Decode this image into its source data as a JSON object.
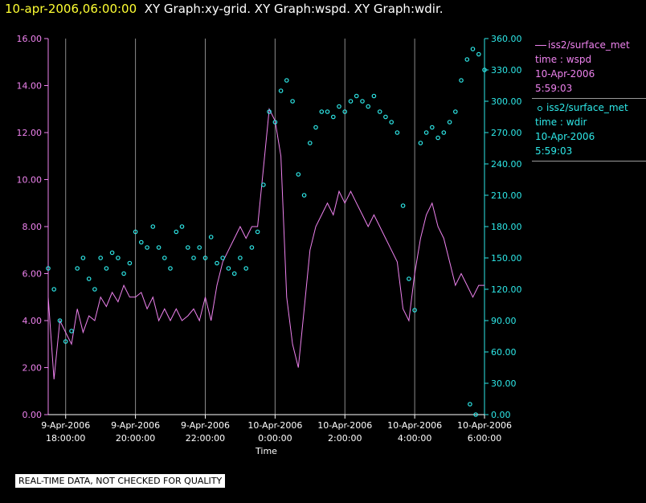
{
  "header": {
    "timestamp": "10-apr-2006,06:00:00",
    "graphs": "XY Graph:xy-grid.  XY Graph:wspd.  XY Graph:wdir."
  },
  "legend": [
    {
      "symbol": "line",
      "name": "iss2/surface_met",
      "field": "time : wspd",
      "date": "10-Apr-2006",
      "time": "5:59:03",
      "color": "#ee82ee"
    },
    {
      "symbol": "circle",
      "name": "iss2/surface_met",
      "field": "time : wdir",
      "date": "10-Apr-2006",
      "time": "5:59:03",
      "color": "#2ee8e8"
    }
  ],
  "note": "REAL-TIME DATA, NOT CHECKED FOR QUALITY",
  "chart_data": {
    "type": "line",
    "xlabel": "Time",
    "x_range": [
      "2006-04-09T17:30:00",
      "2006-04-10T06:00:00"
    ],
    "x_ticks": [
      {
        "date": "9-Apr-2006",
        "time": "18:00:00"
      },
      {
        "date": "9-Apr-2006",
        "time": "20:00:00"
      },
      {
        "date": "9-Apr-2006",
        "time": "22:00:00"
      },
      {
        "date": "10-Apr-2006",
        "time": "0:00:00"
      },
      {
        "date": "10-Apr-2006",
        "time": "2:00:00"
      },
      {
        "date": "10-Apr-2006",
        "time": "4:00:00"
      },
      {
        "date": "10-Apr-2006",
        "time": "6:00:00"
      }
    ],
    "left_axis": {
      "min": 0,
      "max": 16,
      "ticks": [
        "0.00",
        "2.00",
        "4.00",
        "6.00",
        "8.00",
        "10.00",
        "12.00",
        "14.00",
        "16.00"
      ],
      "color": "#ee82ee"
    },
    "right_axis": {
      "min": 0,
      "max": 360,
      "ticks": [
        "0.00",
        "30.00",
        "60.00",
        "90.00",
        "120.00",
        "150.00",
        "180.00",
        "210.00",
        "240.00",
        "270.00",
        "300.00",
        "330.00",
        "360.00"
      ],
      "color": "#2ee8e8"
    },
    "grid": "vertical",
    "series": [
      {
        "name": "wspd",
        "axis": "left",
        "style": "line",
        "color": "#ee82ee",
        "points": [
          [
            "17:30",
            5.0
          ],
          [
            "17:40",
            1.5
          ],
          [
            "17:50",
            4.0
          ],
          [
            "18:00",
            3.5
          ],
          [
            "18:10",
            3.0
          ],
          [
            "18:20",
            4.5
          ],
          [
            "18:30",
            3.5
          ],
          [
            "18:40",
            4.2
          ],
          [
            "18:50",
            4.0
          ],
          [
            "19:00",
            5.0
          ],
          [
            "19:10",
            4.6
          ],
          [
            "19:20",
            5.2
          ],
          [
            "19:30",
            4.8
          ],
          [
            "19:40",
            5.5
          ],
          [
            "19:50",
            5.0
          ],
          [
            "20:00",
            5.0
          ],
          [
            "20:10",
            5.2
          ],
          [
            "20:20",
            4.5
          ],
          [
            "20:30",
            5.0
          ],
          [
            "20:40",
            4.0
          ],
          [
            "20:50",
            4.5
          ],
          [
            "21:00",
            4.0
          ],
          [
            "21:10",
            4.5
          ],
          [
            "21:20",
            4.0
          ],
          [
            "21:30",
            4.2
          ],
          [
            "21:40",
            4.5
          ],
          [
            "21:50",
            4.0
          ],
          [
            "22:00",
            5.0
          ],
          [
            "22:10",
            4.0
          ],
          [
            "22:20",
            5.5
          ],
          [
            "22:30",
            6.5
          ],
          [
            "22:40",
            7.0
          ],
          [
            "22:50",
            7.5
          ],
          [
            "23:00",
            8.0
          ],
          [
            "23:10",
            7.5
          ],
          [
            "23:20",
            8.0
          ],
          [
            "23:30",
            8.0
          ],
          [
            "23:40",
            10.5
          ],
          [
            "23:50",
            13.0
          ],
          [
            "0:00",
            12.5
          ],
          [
            "0:10",
            11.0
          ],
          [
            "0:20",
            5.0
          ],
          [
            "0:30",
            3.0
          ],
          [
            "0:40",
            2.0
          ],
          [
            "0:50",
            4.5
          ],
          [
            "1:00",
            7.0
          ],
          [
            "1:10",
            8.0
          ],
          [
            "1:20",
            8.5
          ],
          [
            "1:30",
            9.0
          ],
          [
            "1:40",
            8.5
          ],
          [
            "1:50",
            9.5
          ],
          [
            "2:00",
            9.0
          ],
          [
            "2:10",
            9.5
          ],
          [
            "2:20",
            9.0
          ],
          [
            "2:30",
            8.5
          ],
          [
            "2:40",
            8.0
          ],
          [
            "2:50",
            8.5
          ],
          [
            "3:00",
            8.0
          ],
          [
            "3:10",
            7.5
          ],
          [
            "3:20",
            7.0
          ],
          [
            "3:30",
            6.5
          ],
          [
            "3:40",
            4.5
          ],
          [
            "3:50",
            4.0
          ],
          [
            "4:00",
            6.0
          ],
          [
            "4:10",
            7.5
          ],
          [
            "4:20",
            8.5
          ],
          [
            "4:30",
            9.0
          ],
          [
            "4:40",
            8.0
          ],
          [
            "4:50",
            7.5
          ],
          [
            "5:00",
            6.5
          ],
          [
            "5:10",
            5.5
          ],
          [
            "5:20",
            6.0
          ],
          [
            "5:30",
            5.5
          ],
          [
            "5:40",
            5.0
          ],
          [
            "5:50",
            5.5
          ],
          [
            "6:00",
            5.5
          ]
        ]
      },
      {
        "name": "wdir",
        "axis": "right",
        "style": "scatter",
        "color": "#2ee8e8",
        "points": [
          [
            "17:30",
            140
          ],
          [
            "17:40",
            120
          ],
          [
            "17:50",
            90
          ],
          [
            "18:00",
            70
          ],
          [
            "18:10",
            80
          ],
          [
            "18:20",
            140
          ],
          [
            "18:30",
            150
          ],
          [
            "18:40",
            130
          ],
          [
            "18:50",
            120
          ],
          [
            "19:00",
            150
          ],
          [
            "19:10",
            140
          ],
          [
            "19:20",
            155
          ],
          [
            "19:30",
            150
          ],
          [
            "19:40",
            135
          ],
          [
            "19:50",
            145
          ],
          [
            "20:00",
            175
          ],
          [
            "20:10",
            165
          ],
          [
            "20:20",
            160
          ],
          [
            "20:30",
            180
          ],
          [
            "20:40",
            160
          ],
          [
            "20:50",
            150
          ],
          [
            "21:00",
            140
          ],
          [
            "21:10",
            175
          ],
          [
            "21:20",
            180
          ],
          [
            "21:30",
            160
          ],
          [
            "21:40",
            150
          ],
          [
            "21:50",
            160
          ],
          [
            "22:00",
            150
          ],
          [
            "22:10",
            170
          ],
          [
            "22:20",
            145
          ],
          [
            "22:30",
            150
          ],
          [
            "22:40",
            140
          ],
          [
            "22:50",
            135
          ],
          [
            "23:00",
            150
          ],
          [
            "23:10",
            140
          ],
          [
            "23:20",
            160
          ],
          [
            "23:30",
            175
          ],
          [
            "23:40",
            220
          ],
          [
            "23:50",
            290
          ],
          [
            "0:00",
            280
          ],
          [
            "0:10",
            310
          ],
          [
            "0:20",
            320
          ],
          [
            "0:30",
            300
          ],
          [
            "0:40",
            230
          ],
          [
            "0:50",
            210
          ],
          [
            "1:00",
            260
          ],
          [
            "1:10",
            275
          ],
          [
            "1:20",
            290
          ],
          [
            "1:30",
            290
          ],
          [
            "1:40",
            285
          ],
          [
            "1:50",
            295
          ],
          [
            "2:00",
            290
          ],
          [
            "2:10",
            300
          ],
          [
            "2:20",
            305
          ],
          [
            "2:30",
            300
          ],
          [
            "2:40",
            295
          ],
          [
            "2:50",
            305
          ],
          [
            "3:00",
            290
          ],
          [
            "3:10",
            285
          ],
          [
            "3:20",
            280
          ],
          [
            "3:30",
            270
          ],
          [
            "3:40",
            200
          ],
          [
            "3:50",
            130
          ],
          [
            "4:00",
            100
          ],
          [
            "4:10",
            260
          ],
          [
            "4:20",
            270
          ],
          [
            "4:30",
            275
          ],
          [
            "4:40",
            265
          ],
          [
            "4:50",
            270
          ],
          [
            "5:00",
            280
          ],
          [
            "5:10",
            290
          ],
          [
            "5:20",
            320
          ],
          [
            "5:30",
            340
          ],
          [
            "5:40",
            350
          ],
          [
            "5:50",
            345
          ],
          [
            "6:00",
            330
          ],
          [
            "5:35",
            10
          ],
          [
            "5:45",
            0
          ]
        ]
      }
    ]
  }
}
